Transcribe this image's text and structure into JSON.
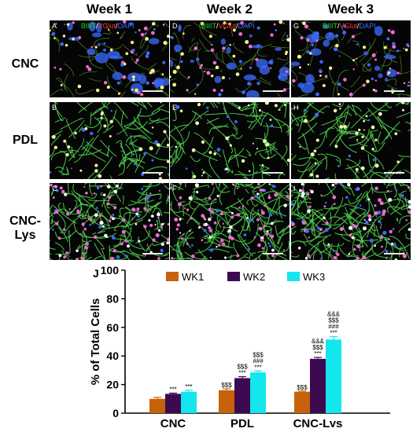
{
  "figure": {
    "column_headers": [
      "Week 1",
      "Week 2",
      "Week 3"
    ],
    "row_headers": [
      "CNC",
      "PDL",
      "CNC-Lys"
    ],
    "stain_label": {
      "a": "BIIIT",
      "b": "VGlut",
      "c": "DAPI",
      "sep": "/"
    },
    "panels": [
      {
        "letter": "A",
        "row": 0,
        "col": 0,
        "stain": true,
        "style": "cnc"
      },
      {
        "letter": "D",
        "row": 0,
        "col": 1,
        "stain": true,
        "style": "cnc"
      },
      {
        "letter": "G",
        "row": 0,
        "col": 2,
        "stain": true,
        "style": "cnc"
      },
      {
        "letter": "B",
        "row": 1,
        "col": 0,
        "stain": false,
        "style": "pdl"
      },
      {
        "letter": "E",
        "row": 1,
        "col": 1,
        "stain": false,
        "style": "pdl"
      },
      {
        "letter": "H",
        "row": 1,
        "col": 2,
        "stain": false,
        "style": "pdl"
      },
      {
        "letter": "C",
        "row": 2,
        "col": 0,
        "stain": false,
        "style": "lys"
      },
      {
        "letter": "F",
        "row": 2,
        "col": 1,
        "stain": false,
        "style": "lys"
      },
      {
        "letter": "I",
        "row": 2,
        "col": 2,
        "stain": false,
        "style": "lys"
      }
    ],
    "colors": {
      "green": "#29d329",
      "red": "#ff2a2a",
      "blue": "#3b6bff",
      "magenta": "#f06bd0",
      "wk1": "#c8620a",
      "wk2": "#3d0a52",
      "wk3": "#14e6ee"
    }
  },
  "chart_letter": "J",
  "chart_data": {
    "type": "bar",
    "categories": [
      "CNC",
      "PDL",
      "CNC-Lys"
    ],
    "series": [
      {
        "name": "WK1",
        "values": [
          10,
          16,
          15
        ],
        "errors": [
          1,
          1,
          0.5
        ],
        "color": "#c8620a"
      },
      {
        "name": "WK2",
        "values": [
          13.5,
          24.5,
          38
        ],
        "errors": [
          0.5,
          1,
          1
        ],
        "color": "#3d0a52"
      },
      {
        "name": "WK3",
        "values": [
          15,
          28.5,
          51.5
        ],
        "errors": [
          1,
          1,
          2
        ],
        "color": "#14e6ee"
      }
    ],
    "annotations": [
      [
        [],
        [
          "***"
        ],
        [
          "***"
        ]
      ],
      [
        [
          "$$$"
        ],
        [
          "***",
          "$$$"
        ],
        [
          "***",
          "###",
          "$$$"
        ]
      ],
      [
        [
          "$$$"
        ],
        [
          "***",
          "$$$",
          "&&&"
        ],
        [
          "***",
          "###",
          "$$$",
          "&&&"
        ]
      ]
    ],
    "xlabel": "",
    "ylabel": "% of Total Cells",
    "ylim": [
      0,
      100
    ],
    "yticks": [
      0,
      20,
      40,
      60,
      80,
      100
    ],
    "legend_position": "top"
  }
}
